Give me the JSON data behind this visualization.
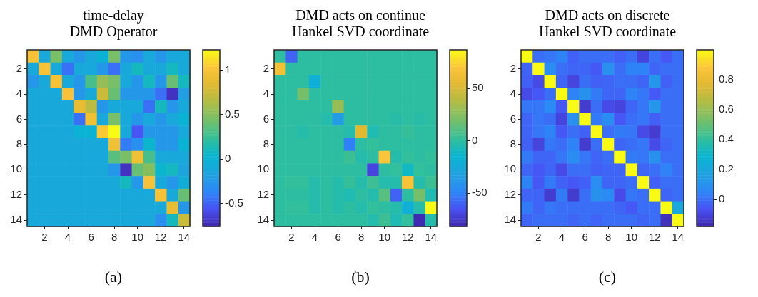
{
  "chart_data": [
    {
      "type": "heatmap",
      "title": "time-delay\nDMD Operator",
      "annotations": [
        "(a)"
      ],
      "categories": [
        null,
        "2",
        null,
        "4",
        null,
        "6",
        null,
        "8",
        null,
        "10",
        null,
        "12",
        null,
        "14"
      ],
      "y_categories": [
        null,
        "2",
        null,
        "4",
        null,
        "6",
        null,
        "8",
        null,
        "10",
        null,
        "12",
        null,
        "14"
      ],
      "clim": [
        -0.76,
        1.23
      ],
      "cticks": [
        -0.5,
        0,
        0.5,
        1
      ],
      "cells": [
        [
          1.0,
          -0.1,
          0.45,
          -0.1,
          -0.25,
          -0.1,
          0.0,
          0.45,
          -0.25,
          -0.3,
          -0.1,
          -0.25,
          -0.1,
          -0.1
        ],
        [
          -0.1,
          1.0,
          -0.1,
          -0.45,
          -0.1,
          -0.1,
          -0.25,
          -0.45,
          -0.1,
          0.1,
          -0.1,
          -0.1,
          0.1,
          -0.1
        ],
        [
          -0.25,
          -0.1,
          1.0,
          -0.1,
          -0.25,
          0.3,
          0.55,
          0.45,
          -0.1,
          -0.25,
          0.1,
          -0.25,
          0.4,
          0.1
        ],
        [
          -0.1,
          -0.1,
          -0.1,
          1.0,
          -0.25,
          -0.1,
          0.75,
          0.4,
          -0.25,
          -0.25,
          -0.25,
          -0.45,
          -0.7,
          -0.2
        ],
        [
          -0.1,
          -0.1,
          -0.1,
          -0.1,
          0.9,
          0.7,
          -0.25,
          -0.1,
          -0.1,
          -0.1,
          -0.45,
          0.1,
          -0.25,
          -0.1
        ],
        [
          -0.1,
          -0.1,
          -0.1,
          -0.1,
          -0.45,
          0.95,
          -0.1,
          0.45,
          -0.1,
          -0.25,
          -0.1,
          -0.25,
          -0.1,
          0.0
        ],
        [
          -0.1,
          -0.1,
          -0.1,
          -0.1,
          0.0,
          0.0,
          1.05,
          1.23,
          -0.1,
          -0.55,
          -0.25,
          -0.25,
          -0.25,
          -0.1
        ],
        [
          -0.1,
          -0.1,
          -0.1,
          -0.1,
          -0.1,
          -0.1,
          -0.1,
          0.95,
          -0.4,
          -0.3,
          0.05,
          -0.25,
          -0.25,
          0.0
        ],
        [
          -0.1,
          -0.1,
          -0.1,
          -0.1,
          -0.1,
          -0.1,
          -0.1,
          0.35,
          0.45,
          0.95,
          0.3,
          -0.1,
          -0.1,
          -0.1
        ],
        [
          -0.1,
          -0.1,
          -0.1,
          -0.1,
          -0.1,
          -0.1,
          -0.1,
          -0.25,
          -0.7,
          0.4,
          0.5,
          0.05,
          0.1,
          -0.15
        ],
        [
          -0.1,
          -0.1,
          -0.1,
          -0.1,
          -0.1,
          -0.1,
          -0.1,
          -0.1,
          0.1,
          -0.25,
          1.0,
          -0.1,
          -0.25,
          -0.05
        ],
        [
          -0.1,
          -0.1,
          -0.1,
          -0.1,
          -0.1,
          -0.1,
          -0.1,
          -0.1,
          -0.1,
          -0.1,
          -0.1,
          1.0,
          -0.1,
          0.4
        ],
        [
          -0.1,
          -0.1,
          -0.1,
          -0.1,
          -0.1,
          -0.1,
          -0.1,
          -0.1,
          -0.1,
          -0.1,
          -0.1,
          -0.1,
          0.9,
          -0.25
        ],
        [
          -0.1,
          -0.1,
          -0.1,
          -0.1,
          -0.1,
          -0.1,
          -0.1,
          -0.1,
          -0.1,
          -0.1,
          -0.1,
          -0.3,
          0.1,
          0.75
        ]
      ]
    },
    {
      "type": "heatmap",
      "title": "DMD acts on continue\nHankel SVD coordinate",
      "annotations": [
        "(b)"
      ],
      "categories": [
        null,
        "2",
        null,
        "4",
        null,
        "6",
        null,
        "8",
        null,
        "10",
        null,
        "12",
        null,
        "14"
      ],
      "y_categories": [
        null,
        "2",
        null,
        "4",
        null,
        "6",
        null,
        "8",
        null,
        "10",
        null,
        "12",
        null,
        "14"
      ],
      "clim": [
        -82,
        87
      ],
      "cticks": [
        -50,
        0,
        50
      ],
      "cells": [
        [
          0,
          -60,
          0,
          0,
          0,
          0,
          0,
          0,
          0,
          0,
          0,
          0,
          0,
          0
        ],
        [
          65,
          0,
          0,
          0,
          0,
          0,
          0,
          0,
          0,
          0,
          0,
          0,
          0,
          0
        ],
        [
          0,
          0,
          0,
          -20,
          0,
          0,
          0,
          0,
          0,
          0,
          0,
          0,
          0,
          0
        ],
        [
          0,
          0,
          20,
          0,
          0,
          0,
          0,
          0,
          0,
          0,
          0,
          0,
          0,
          0
        ],
        [
          0,
          0,
          0,
          0,
          0,
          30,
          0,
          0,
          0,
          0,
          0,
          0,
          0,
          0
        ],
        [
          0,
          0,
          0,
          0,
          -3,
          -35,
          0,
          0,
          0,
          0,
          -2,
          0,
          -2,
          0
        ],
        [
          0,
          0,
          -3,
          0,
          0,
          0,
          -3,
          55,
          -5,
          0,
          0,
          3,
          0,
          0
        ],
        [
          0,
          0,
          0,
          0,
          0,
          0,
          -50,
          0,
          2,
          0,
          0,
          0,
          0,
          0
        ],
        [
          0,
          0,
          0,
          0,
          0,
          0,
          5,
          -3,
          0,
          70,
          -3,
          2,
          0,
          2
        ],
        [
          0,
          0,
          0,
          0,
          0,
          0,
          0,
          0,
          -70,
          0,
          2,
          -10,
          2,
          0
        ],
        [
          0,
          2,
          2,
          -3,
          0,
          -3,
          3,
          -3,
          5,
          -3,
          -3,
          68,
          -3,
          5
        ],
        [
          0,
          0,
          0,
          -3,
          0,
          -3,
          -5,
          0,
          -3,
          12,
          -60,
          0,
          20,
          -5
        ],
        [
          0,
          2,
          2,
          -3,
          0,
          -3,
          0,
          -3,
          2,
          0,
          -3,
          -20,
          -3,
          87
        ],
        [
          0,
          0,
          0,
          0,
          0,
          0,
          0,
          0,
          -3,
          5,
          -5,
          2,
          -80,
          -3
        ]
      ]
    },
    {
      "type": "heatmap",
      "title": "DMD acts on discrete\nHankel SVD coordinate",
      "annotations": [
        "(c)"
      ],
      "categories": [
        null,
        "2",
        null,
        "4",
        null,
        "6",
        null,
        "8",
        null,
        "10",
        null,
        "12",
        null,
        "14"
      ],
      "y_categories": [
        null,
        "2",
        null,
        "4",
        null,
        "6",
        null,
        "8",
        null,
        "10",
        null,
        "12",
        null,
        "14"
      ],
      "clim": [
        -0.18,
        1.0
      ],
      "cticks": [
        0,
        0.2,
        0.4,
        0.6,
        0.8
      ],
      "cells": [
        [
          1,
          0,
          0.02,
          0.05,
          -0.03,
          0,
          0,
          0,
          -0.03,
          0,
          -0.1,
          0,
          -0.05,
          0
        ],
        [
          -0.02,
          1,
          0.08,
          0,
          -0.02,
          -0.02,
          -0.05,
          0.1,
          0,
          0.05,
          0.05,
          -0.02,
          0,
          0
        ],
        [
          -0.03,
          -0.08,
          1,
          -0.02,
          -0.1,
          0,
          -0.03,
          -0.02,
          0,
          0,
          -0.02,
          0.12,
          -0.03,
          0
        ],
        [
          -0.08,
          -0.05,
          0,
          1,
          0.05,
          0.1,
          0.03,
          -0.02,
          -0.02,
          0.05,
          0.02,
          -0.05,
          0,
          0
        ],
        [
          0.02,
          0.02,
          0.07,
          -0.05,
          1,
          -0.12,
          0,
          -0.08,
          -0.1,
          -0.02,
          0.02,
          0.12,
          0,
          0
        ],
        [
          -0.02,
          0.02,
          0,
          -0.1,
          0.1,
          1,
          0.03,
          0.08,
          -0.05,
          0,
          0.02,
          -0.03,
          0,
          0
        ],
        [
          -0.02,
          0.02,
          0.05,
          -0.05,
          0,
          -0.03,
          1,
          0,
          0.03,
          0.02,
          -0.08,
          -0.12,
          0,
          0
        ],
        [
          -0.03,
          -0.1,
          0.02,
          0,
          0.05,
          -0.12,
          0,
          1,
          -0.02,
          0,
          0.02,
          -0.08,
          -0.02,
          0
        ],
        [
          0.03,
          -0.02,
          -0.02,
          0.02,
          0.08,
          0.02,
          -0.02,
          0,
          1,
          0.03,
          0.02,
          0.1,
          0,
          0
        ],
        [
          -0.02,
          -0.05,
          -0.02,
          -0.08,
          0,
          0,
          -0.03,
          -0.02,
          -0.02,
          1,
          -0.02,
          0,
          0.05,
          0
        ],
        [
          0.05,
          -0.05,
          0.03,
          -0.03,
          -0.05,
          -0.03,
          0.08,
          -0.02,
          -0.02,
          0,
          1,
          -0.03,
          0,
          0
        ],
        [
          -0.02,
          -0.02,
          -0.12,
          0.03,
          -0.12,
          0,
          0.1,
          0.07,
          -0.08,
          0.02,
          0,
          1,
          -0.02,
          0
        ],
        [
          0.03,
          -0.02,
          0.02,
          0,
          0,
          0,
          0,
          0,
          -0.02,
          -0.05,
          0,
          0,
          1,
          0.2
        ],
        [
          -0.02,
          0,
          0,
          0,
          -0.02,
          0,
          -0.02,
          0,
          0,
          0,
          -0.02,
          0,
          -0.15,
          1
        ]
      ]
    }
  ]
}
